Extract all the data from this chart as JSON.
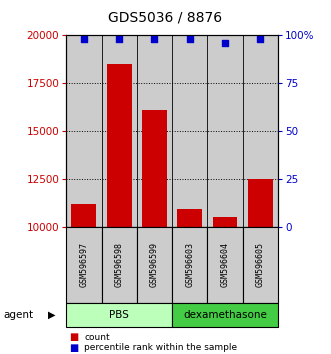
{
  "title": "GDS5036 / 8876",
  "samples": [
    "GSM596597",
    "GSM596598",
    "GSM596599",
    "GSM596603",
    "GSM596604",
    "GSM596605"
  ],
  "counts": [
    11200,
    18500,
    16100,
    10900,
    10500,
    12500
  ],
  "percentile_vals": [
    98,
    98,
    98,
    98,
    96,
    98
  ],
  "ylim_left": [
    10000,
    20000
  ],
  "ylim_right": [
    0,
    100
  ],
  "yticks_left": [
    10000,
    12500,
    15000,
    17500,
    20000
  ],
  "yticks_right": [
    0,
    25,
    50,
    75,
    100
  ],
  "groups": [
    {
      "label": "PBS",
      "indices": [
        0,
        1,
        2
      ],
      "color": "#bbffbb"
    },
    {
      "label": "dexamethasone",
      "indices": [
        3,
        4,
        5
      ],
      "color": "#44cc44"
    }
  ],
  "bar_color": "#cc0000",
  "dot_color": "#0000cc",
  "agent_label": "agent",
  "sample_bg_color": "#cccccc",
  "legend_count_color": "#cc0000",
  "legend_pct_color": "#0000cc"
}
